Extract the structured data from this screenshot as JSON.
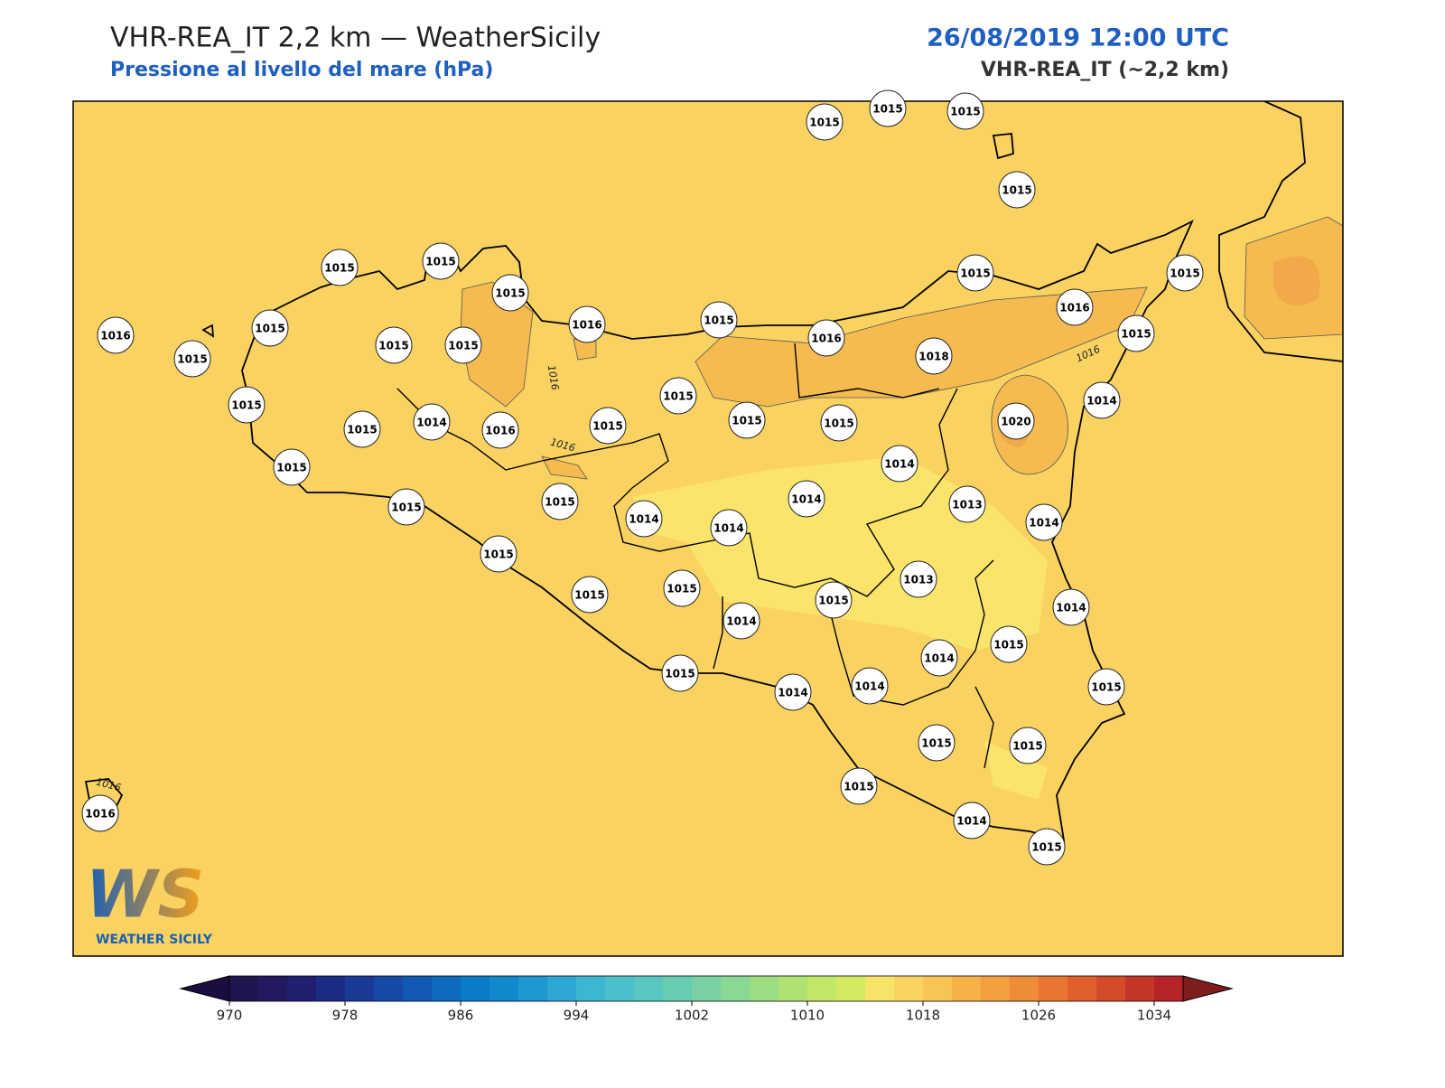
{
  "header": {
    "title": "VHR-REA_IT 2,2 km — WeatherSicily",
    "subtitle": "Pressione al livello del mare (hPa)",
    "datetime": "26/08/2019 12:00 UTC",
    "model": "VHR-REA_IT (~2,2 km)"
  },
  "stations": [
    1015,
    1015,
    1015,
    1015,
    1015,
    1015,
    1015,
    1016,
    1015,
    1015,
    1015,
    1016,
    1016,
    1015,
    1015,
    1015,
    1016,
    1018,
    1015,
    1015,
    1015,
    1014,
    1015,
    1014,
    1016,
    1015,
    1015,
    1015,
    1020,
    1015,
    1015,
    1014,
    1014,
    1015,
    1013,
    1015,
    1014,
    1014,
    1014,
    1015,
    1013,
    1015,
    1015,
    1015,
    1014,
    1014,
    1015,
    1014,
    1015,
    1014,
    1014,
    1015,
    1015,
    1015,
    1015,
    1014,
    1015,
    1016
  ],
  "contour_labels": [
    "1016",
    "1016",
    "1016",
    "1016"
  ],
  "colorbar": {
    "range": [
      970,
      1036
    ],
    "ticks": [
      970,
      978,
      986,
      994,
      1002,
      1010,
      1018,
      1026,
      1034
    ],
    "under": "#1b0c42",
    "over": "#7f1d1d",
    "colors": [
      "#211550",
      "#22195e",
      "#1f2070",
      "#1c2c85",
      "#1a3a98",
      "#1749a8",
      "#1259b4",
      "#0d6abf",
      "#0b7ac7",
      "#1289cc",
      "#1f98d0",
      "#2ea8d2",
      "#3db6d0",
      "#4ac0cb",
      "#57c7c0",
      "#66cdb3",
      "#78d2a4",
      "#89d893",
      "#9cdd82",
      "#afe272",
      "#c2e667",
      "#d5e963",
      "#f7e36a",
      "#fad462",
      "#f7c455",
      "#f4b249",
      "#f2a03f",
      "#ee8c37",
      "#e97630",
      "#e15f2c",
      "#d44b2a",
      "#c43628",
      "#b72427"
    ]
  },
  "logo": {
    "mark": "WS",
    "name": "WEATHER SICILY"
  }
}
